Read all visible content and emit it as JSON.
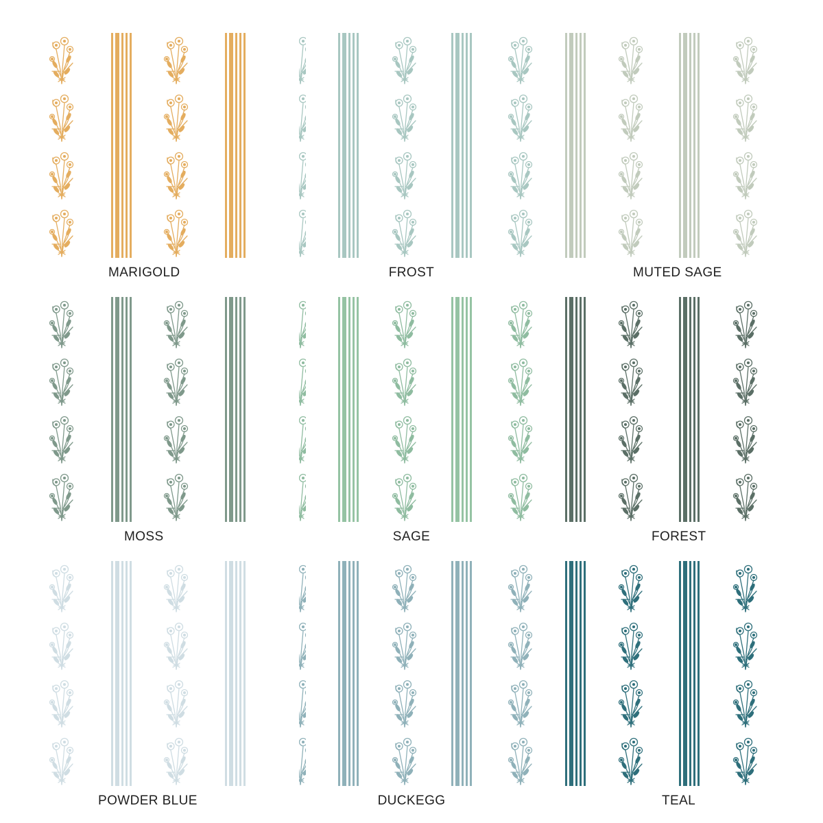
{
  "swatches": [
    {
      "label": "MARIGOLD",
      "color": "#e4ad5f",
      "stem_color": "#e4ad5f"
    },
    {
      "label": "FROST",
      "color": "#a8c7c1",
      "stem_color": "#a8c7c1"
    },
    {
      "label": "MUTED SAGE",
      "color": "#c1cbbc",
      "stem_color": "#c1cbbc"
    },
    {
      "label": "MOSS",
      "color": "#7f998b",
      "stem_color": "#7f998b"
    },
    {
      "label": "SAGE",
      "color": "#95c3a3",
      "stem_color": "#8fbca0"
    },
    {
      "label": "FOREST",
      "color": "#5b6f66",
      "stem_color": "#5b6f66"
    },
    {
      "label": "POWDER BLUE",
      "color": "#cfdde3",
      "stem_color": "#cfdde3"
    },
    {
      "label": "DUCKEGG",
      "color": "#8fb1b9",
      "stem_color": "#8fb1b9"
    },
    {
      "label": "TEAL",
      "color": "#2e6f7b",
      "stem_color": "#2e6f7b"
    }
  ],
  "icons": {
    "bouquet": "flower-bouquet-icon",
    "stripe": "ticking-stripe"
  }
}
